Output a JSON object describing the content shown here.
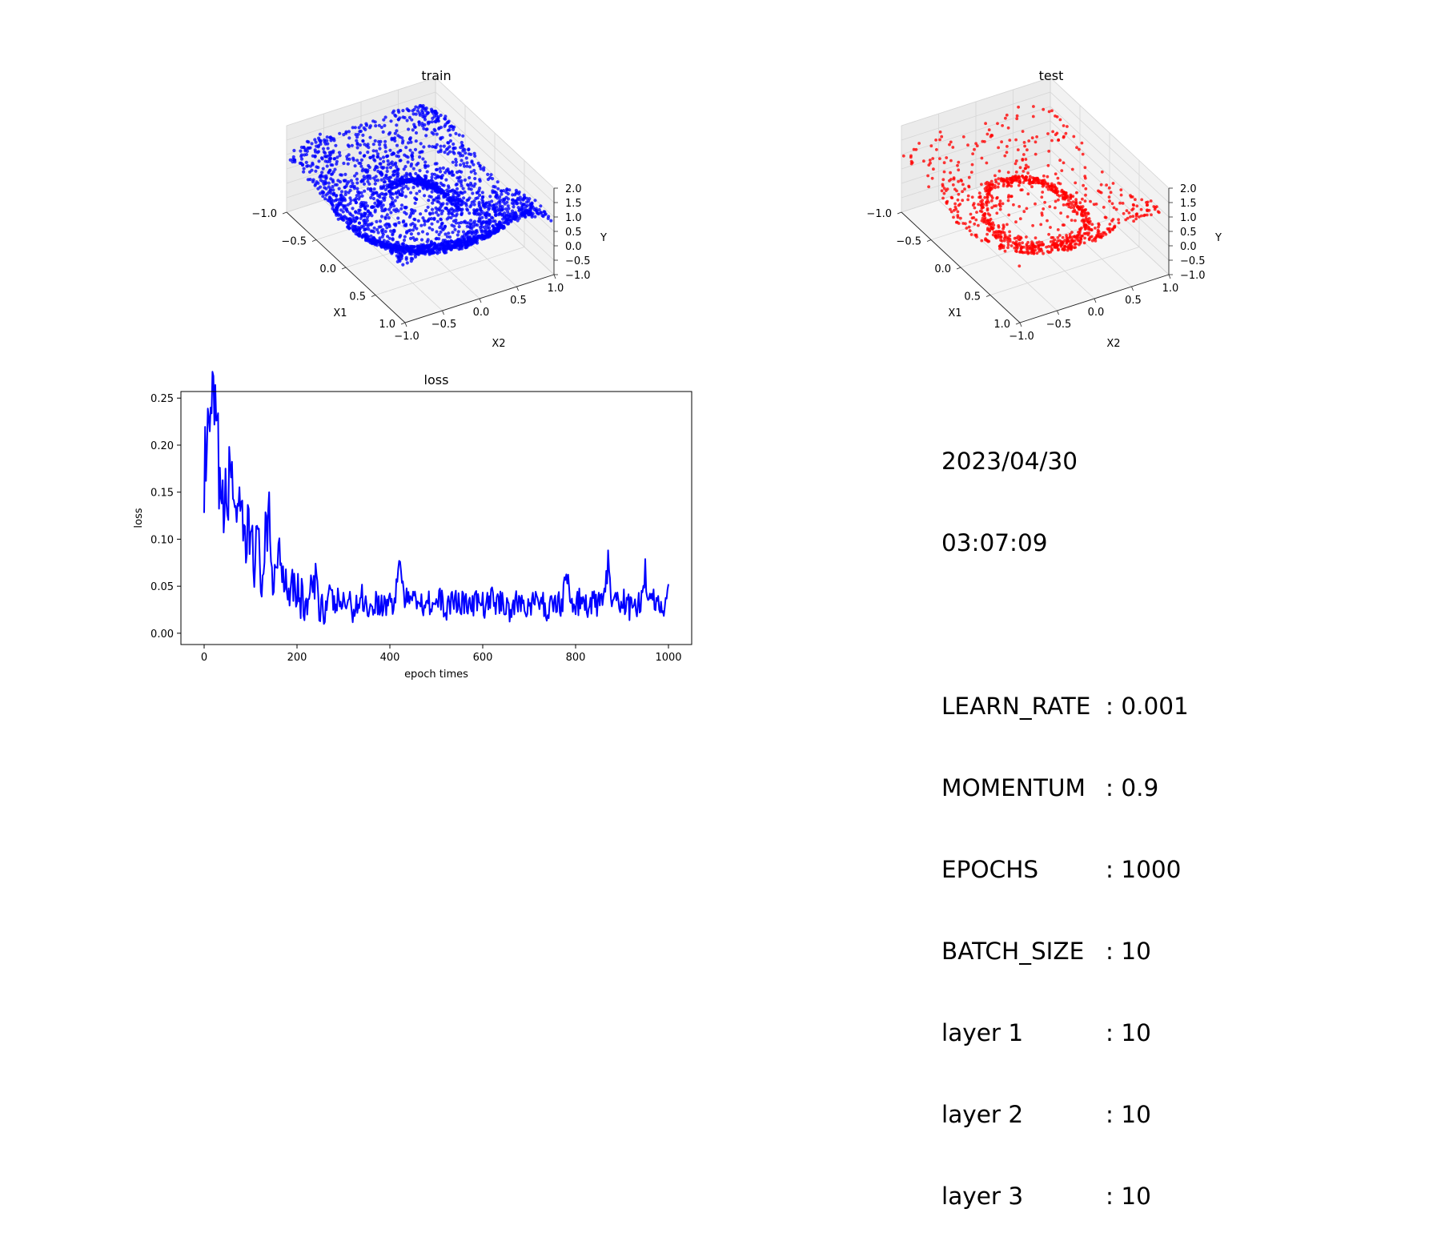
{
  "figure": {
    "train_title": "train",
    "test_title": "test",
    "loss_title": "loss",
    "info": {
      "date": "2023/04/30",
      "time": "03:07:09",
      "params": [
        {
          "key": "LEARN_RATE",
          "value": ": 0.001"
        },
        {
          "key": "MOMENTUM",
          "value": ": 0.9"
        },
        {
          "key": "EPOCHS",
          "value": ": 1000"
        },
        {
          "key": "BATCH_SIZE",
          "value": ": 10"
        },
        {
          "key": "layer 1",
          "value": ": 10"
        },
        {
          "key": "layer 2",
          "value": ": 10"
        },
        {
          "key": "layer 3",
          "value": ": 10"
        }
      ]
    }
  },
  "chart_data": [
    {
      "type": "scatter",
      "projection": "3d",
      "title": "train",
      "xlabel": "X1",
      "ylabel": "X2",
      "zlabel": "Y",
      "xlim": [
        -1.0,
        1.0
      ],
      "ylim": [
        -1.0,
        1.0
      ],
      "zlim": [
        -1.0,
        2.0
      ],
      "xticks": [
        "−1.0",
        "−0.5",
        "0.0",
        "0.5",
        "1.0"
      ],
      "yticks": [
        "−1.0",
        "−0.5",
        "0.0",
        "0.5",
        "1.0"
      ],
      "zticks": [
        "−1.0",
        "−0.5",
        "0.0",
        "0.5",
        "1.0",
        "1.5",
        "2.0"
      ],
      "color": "#0000ff",
      "point_count": 2500
    },
    {
      "type": "scatter",
      "projection": "3d",
      "title": "test",
      "xlabel": "X1",
      "ylabel": "X2",
      "zlabel": "Y",
      "xlim": [
        -1.0,
        1.0
      ],
      "ylim": [
        -1.0,
        1.0
      ],
      "zlim": [
        -1.0,
        2.0
      ],
      "xticks": [
        "−1.0",
        "−0.5",
        "0.0",
        "0.5",
        "1.0"
      ],
      "yticks": [
        "−1.0",
        "−0.5",
        "0.0",
        "0.5",
        "1.0"
      ],
      "zticks": [
        "−1.0",
        "−0.5",
        "0.0",
        "0.5",
        "1.0",
        "1.5",
        "2.0"
      ],
      "color": "#ff0000",
      "point_count": 1000
    },
    {
      "type": "line",
      "title": "loss",
      "xlabel": "epoch times",
      "ylabel": "loss",
      "xlim": [
        -50,
        1050
      ],
      "ylim": [
        -0.012,
        0.257
      ],
      "xticks": [
        0,
        200,
        400,
        600,
        800,
        1000
      ],
      "xtick_labels": [
        "0",
        "200",
        "400",
        "600",
        "800",
        "1000"
      ],
      "yticks": [
        0.0,
        0.05,
        0.1,
        0.15,
        0.2,
        0.25
      ],
      "ytick_labels": [
        "0.00",
        "0.05",
        "0.10",
        "0.15",
        "0.20",
        "0.25"
      ],
      "color": "#0000ff",
      "series": [
        {
          "x_start": 0,
          "x_step": 10,
          "values": [
            0.17,
            0.2,
            0.245,
            0.19,
            0.12,
            0.15,
            0.175,
            0.13,
            0.1,
            0.09,
            0.11,
            0.09,
            0.07,
            0.08,
            0.105,
            0.06,
            0.09,
            0.07,
            0.05,
            0.06,
            0.045,
            0.035,
            0.03,
            0.04,
            0.05,
            0.035,
            0.025,
            0.04,
            0.03,
            0.035,
            0.03,
            0.035,
            0.025,
            0.03,
            0.04,
            0.03,
            0.025,
            0.035,
            0.03,
            0.03,
            0.035,
            0.03,
            0.08,
            0.04,
            0.03,
            0.05,
            0.035,
            0.03,
            0.04,
            0.03,
            0.03,
            0.035,
            0.025,
            0.03,
            0.04,
            0.03,
            0.035,
            0.025,
            0.03,
            0.035,
            0.03,
            0.03,
            0.04,
            0.03,
            0.035,
            0.03,
            0.025,
            0.03,
            0.035,
            0.03,
            0.03,
            0.03,
            0.035,
            0.03,
            0.025,
            0.03,
            0.035,
            0.03,
            0.065,
            0.03,
            0.03,
            0.035,
            0.03,
            0.025,
            0.035,
            0.03,
            0.03,
            0.075,
            0.03,
            0.03,
            0.035,
            0.03,
            0.025,
            0.03,
            0.03,
            0.065,
            0.03,
            0.035,
            0.03,
            0.03,
            0.045
          ]
        }
      ]
    }
  ]
}
